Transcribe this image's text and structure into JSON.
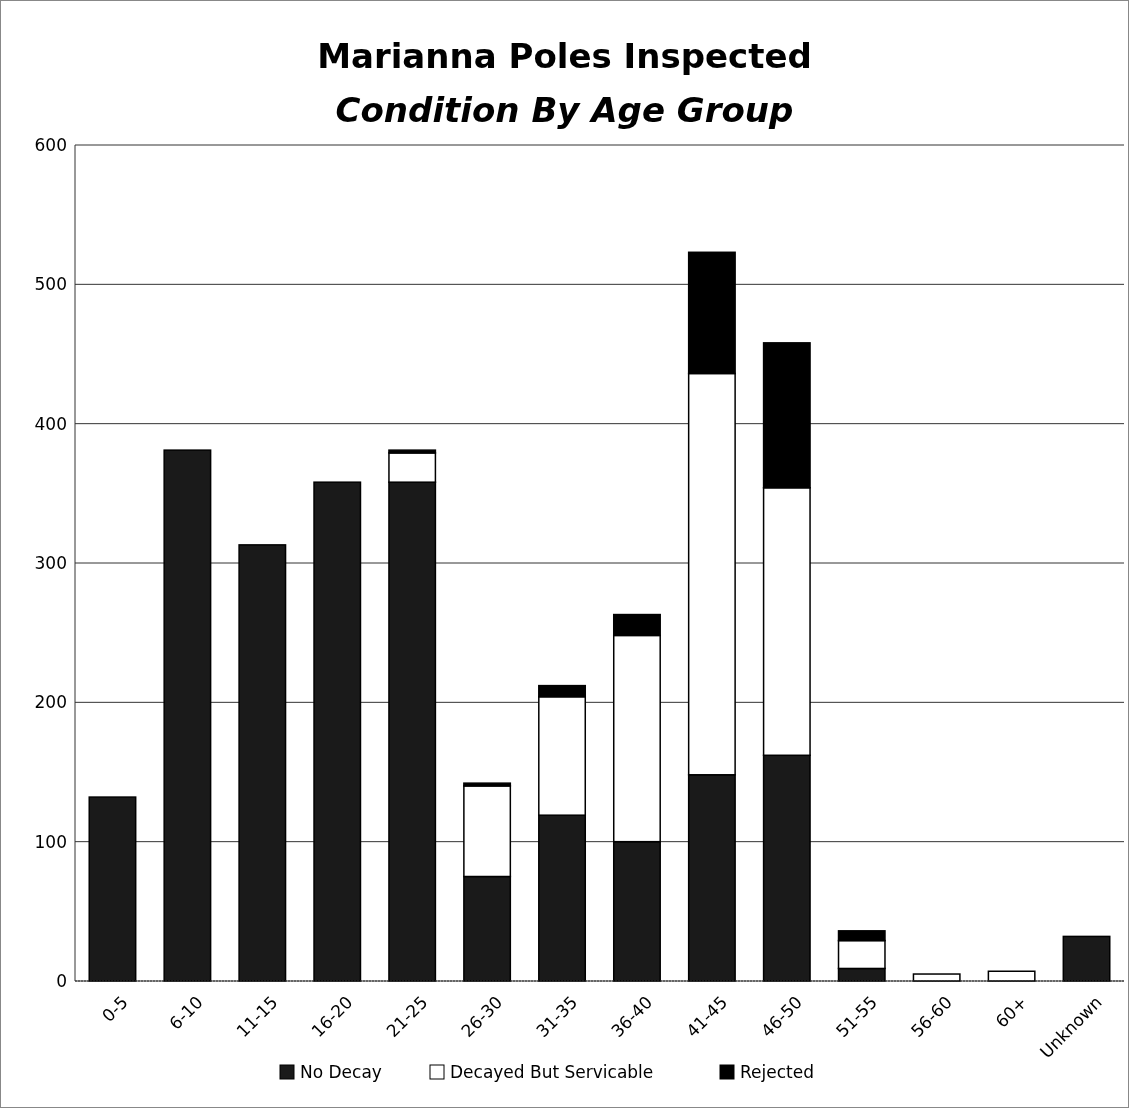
{
  "chart_data": {
    "type": "bar",
    "title": "Marianna Poles Inspected",
    "subtitle": "Condition By Age Group",
    "categories": [
      "0-5",
      "6-10",
      "11-15",
      "16-20",
      "21-25",
      "26-30",
      "31-35",
      "36-40",
      "41-45",
      "46-50",
      "51-55",
      "56-60",
      "60+",
      "Unknown"
    ],
    "stacked": true,
    "series": [
      {
        "name": "No Decay",
        "color": "#1a1a1a",
        "values": [
          132,
          381,
          313,
          358,
          358,
          75,
          119,
          100,
          148,
          162,
          9,
          0,
          0,
          32
        ]
      },
      {
        "name": "Decayed But Servicable",
        "color": "#ffffff",
        "values": [
          0,
          0,
          0,
          0,
          21,
          65,
          85,
          148,
          288,
          192,
          20,
          5,
          7,
          0
        ]
      },
      {
        "name": "Rejected",
        "color": "#000000",
        "values": [
          0,
          0,
          0,
          0,
          2,
          2,
          8,
          15,
          87,
          104,
          7,
          0,
          0,
          0
        ]
      }
    ],
    "ylim": [
      0,
      600
    ],
    "yticks": [
      0,
      100,
      200,
      300,
      400,
      500,
      600
    ],
    "grid": "y",
    "legend": "bottom"
  }
}
